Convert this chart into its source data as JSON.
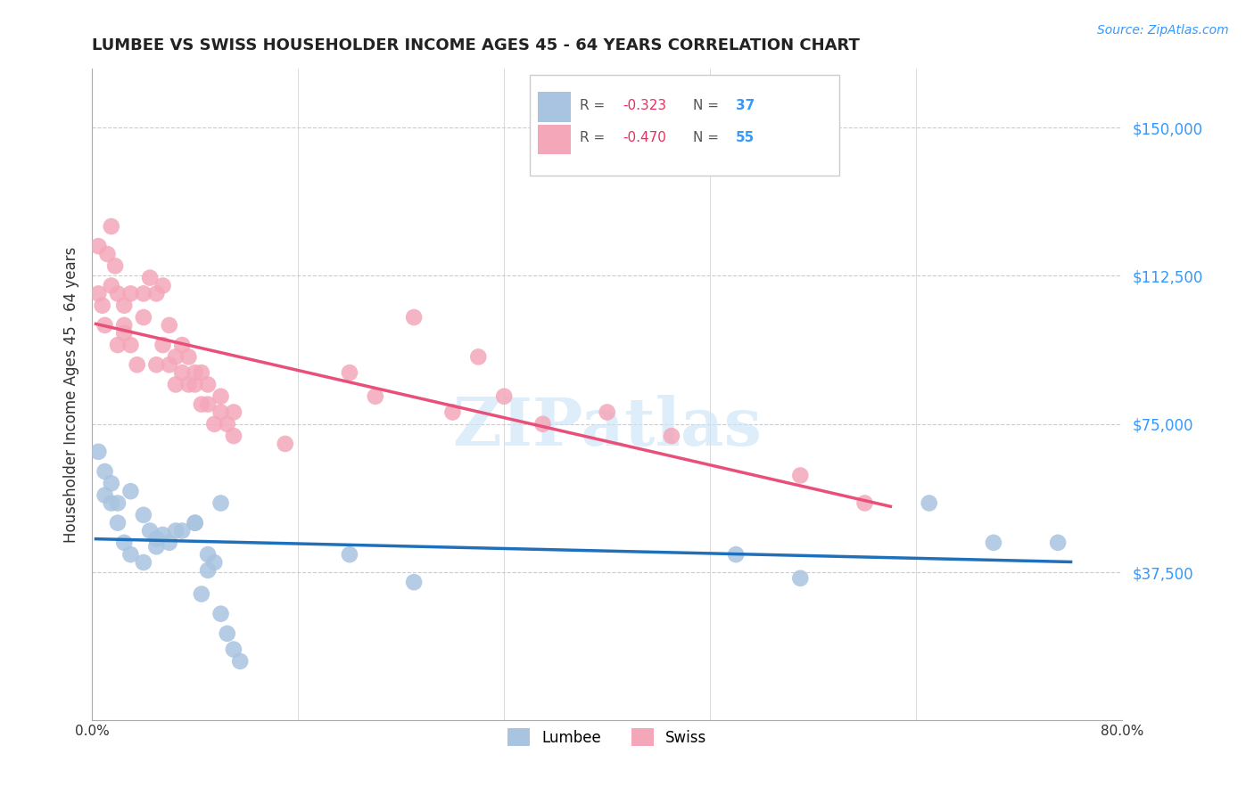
{
  "title": "LUMBEE VS SWISS HOUSEHOLDER INCOME AGES 45 - 64 YEARS CORRELATION CHART",
  "source": "Source: ZipAtlas.com",
  "ylabel": "Householder Income Ages 45 - 64 years",
  "xlim": [
    0.0,
    0.8
  ],
  "ylim": [
    0,
    165000
  ],
  "yticks": [
    0,
    37500,
    75000,
    112500,
    150000
  ],
  "ytick_labels": [
    "",
    "$37,500",
    "$75,000",
    "$112,500",
    "$150,000"
  ],
  "xticks": [
    0.0,
    0.16,
    0.32,
    0.48,
    0.64,
    0.8
  ],
  "xtick_labels": [
    "0.0%",
    "",
    "",
    "",
    "",
    "80.0%"
  ],
  "lumbee_R": "-0.323",
  "lumbee_N": "37",
  "swiss_R": "-0.470",
  "swiss_N": "55",
  "lumbee_color": "#a8c4e0",
  "swiss_color": "#f4a7b9",
  "lumbee_line_color": "#1f6fba",
  "swiss_line_color": "#e8507a",
  "watermark": "ZIPatlas",
  "lumbee_x": [
    0.005,
    0.01,
    0.01,
    0.015,
    0.015,
    0.02,
    0.02,
    0.025,
    0.03,
    0.03,
    0.04,
    0.04,
    0.045,
    0.05,
    0.05,
    0.055,
    0.06,
    0.065,
    0.07,
    0.08,
    0.08,
    0.085,
    0.09,
    0.09,
    0.095,
    0.1,
    0.1,
    0.105,
    0.11,
    0.115,
    0.2,
    0.25,
    0.5,
    0.55,
    0.65,
    0.7,
    0.75
  ],
  "lumbee_y": [
    68000,
    57000,
    63000,
    55000,
    60000,
    50000,
    55000,
    45000,
    58000,
    42000,
    40000,
    52000,
    48000,
    44000,
    46000,
    47000,
    45000,
    48000,
    48000,
    50000,
    50000,
    32000,
    38000,
    42000,
    40000,
    55000,
    27000,
    22000,
    18000,
    15000,
    42000,
    35000,
    42000,
    36000,
    55000,
    45000,
    45000
  ],
  "swiss_x": [
    0.005,
    0.005,
    0.008,
    0.01,
    0.012,
    0.015,
    0.015,
    0.018,
    0.02,
    0.02,
    0.025,
    0.025,
    0.025,
    0.03,
    0.03,
    0.035,
    0.04,
    0.04,
    0.045,
    0.05,
    0.05,
    0.055,
    0.055,
    0.06,
    0.06,
    0.065,
    0.065,
    0.07,
    0.07,
    0.075,
    0.075,
    0.08,
    0.08,
    0.085,
    0.085,
    0.09,
    0.09,
    0.095,
    0.1,
    0.1,
    0.105,
    0.11,
    0.11,
    0.15,
    0.2,
    0.22,
    0.25,
    0.28,
    0.3,
    0.32,
    0.35,
    0.4,
    0.45,
    0.55,
    0.6
  ],
  "swiss_y": [
    120000,
    108000,
    105000,
    100000,
    118000,
    110000,
    125000,
    115000,
    95000,
    108000,
    105000,
    100000,
    98000,
    95000,
    108000,
    90000,
    102000,
    108000,
    112000,
    90000,
    108000,
    110000,
    95000,
    90000,
    100000,
    85000,
    92000,
    88000,
    95000,
    85000,
    92000,
    85000,
    88000,
    80000,
    88000,
    80000,
    85000,
    75000,
    82000,
    78000,
    75000,
    78000,
    72000,
    70000,
    88000,
    82000,
    102000,
    78000,
    92000,
    82000,
    75000,
    78000,
    72000,
    62000,
    55000
  ]
}
